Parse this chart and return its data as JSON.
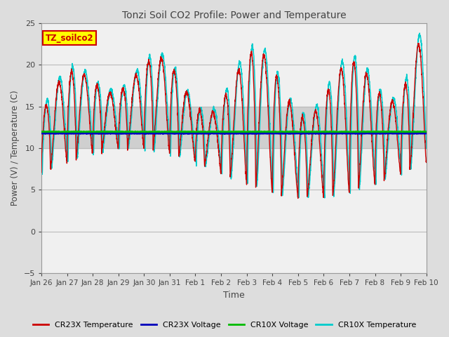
{
  "title": "Tonzi Soil CO2 Profile: Power and Temperature",
  "xlabel": "Time",
  "ylabel": "Power (V) / Temperature (C)",
  "ylim": [
    -5,
    25
  ],
  "yticks": [
    -5,
    0,
    5,
    10,
    15,
    20,
    25
  ],
  "voltage_cr23x": 11.75,
  "voltage_cr10x": 11.95,
  "temp_cr23x_color": "#cc0000",
  "temp_cr10x_color": "#00cccc",
  "voltage_cr23x_color": "#0000bb",
  "voltage_cr10x_color": "#00bb00",
  "annotation_text": "TZ_soilco2",
  "annotation_color": "#cc0000",
  "annotation_bg": "#ffff00",
  "background_color": "#dddddd",
  "plot_bg_color": "#f0f0f0",
  "shaded_band_low": 10,
  "shaded_band_high": 15,
  "shaded_band_color": "#cccccc",
  "x_tick_labels": [
    "Jan 26",
    "Jan 27",
    "Jan 28",
    "Jan 29",
    "Jan 30",
    "Jan 31",
    "Feb 1",
    "Feb 2",
    "Feb 3",
    "Feb 4",
    "Feb 5",
    "Feb 6",
    "Feb 7",
    "Feb 8",
    "Feb 9",
    "Feb 10"
  ],
  "x_tick_positions": [
    0,
    1,
    2,
    3,
    4,
    5,
    6,
    7,
    8,
    9,
    10,
    11,
    12,
    13,
    14,
    15
  ],
  "legend_labels": [
    "CR23X Temperature",
    "CR23X Voltage",
    "CR10X Voltage",
    "CR10X Temperature"
  ],
  "legend_colors": [
    "#cc0000",
    "#0000bb",
    "#00bb00",
    "#00cccc"
  ],
  "figsize": [
    6.4,
    4.8
  ],
  "dpi": 100
}
